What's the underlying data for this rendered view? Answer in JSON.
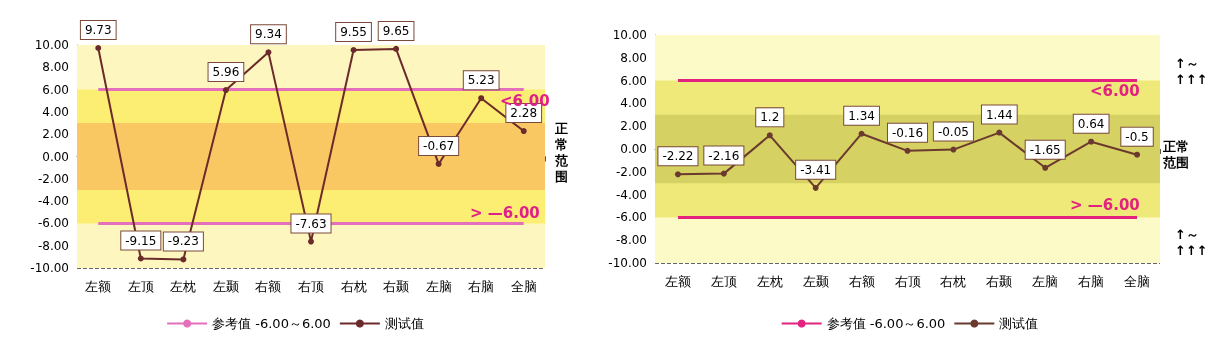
{
  "chart_data": [
    {
      "type": "line",
      "categories": [
        "左额",
        "左顶",
        "左枕",
        "左颞",
        "右额",
        "右顶",
        "右枕",
        "右颞",
        "左脑",
        "右脑",
        "全脑"
      ],
      "series": [
        {
          "name": "参考值 -6.00～6.00",
          "color": "#e36fbd",
          "marker": "none",
          "values": [
            6,
            6,
            6,
            6,
            6,
            6,
            6,
            6,
            6,
            6,
            6
          ]
        },
        {
          "color": "#e36fbd",
          "marker": "none",
          "values": [
            -6,
            -6,
            -6,
            -6,
            -6,
            -6,
            -6,
            -6,
            -6,
            -6,
            -6
          ]
        },
        {
          "name": "测试值",
          "color": "#6b2b2b",
          "marker": "circle",
          "values": [
            9.73,
            -9.15,
            -9.23,
            5.96,
            9.34,
            -7.63,
            9.55,
            9.65,
            -0.67,
            5.23,
            2.28
          ],
          "value_labels": [
            "9.73",
            "-9.15",
            "-9.23",
            "5.96",
            "9.34",
            "-7.63",
            "9.55",
            "9.65",
            "-0.67",
            "5.23",
            "2.28"
          ]
        }
      ],
      "ylim": [
        -10,
        10
      ],
      "yticks": [
        {
          "value": -10,
          "label": "-10.00"
        },
        {
          "value": -8,
          "label": "-8.00"
        },
        {
          "value": -6,
          "label": "-6.00"
        },
        {
          "value": -4,
          "label": "-4.00"
        },
        {
          "value": -2,
          "label": "-2.00"
        },
        {
          "value": 0,
          "label": "0.00"
        },
        {
          "value": 2,
          "label": "2.00"
        },
        {
          "value": 4,
          "label": "4.00"
        },
        {
          "value": 6,
          "label": "6.00"
        },
        {
          "value": 8,
          "label": "8.00"
        },
        {
          "value": 10,
          "label": "10.00"
        }
      ],
      "bands": [
        {
          "axis": "y",
          "from": -10,
          "to": 10,
          "color": "#fdf6bf"
        },
        {
          "axis": "y",
          "from": -6,
          "to": 6,
          "color": "#fcee72"
        },
        {
          "axis": "y",
          "from": -3,
          "to": 3,
          "color": "#f9c862"
        }
      ],
      "annotations": [
        "<6.00",
        "> —6.00",
        "正常范围"
      ],
      "grid": "y",
      "legend": "bottom"
    },
    {
      "type": "line",
      "categories": [
        "左额",
        "左顶",
        "左枕",
        "左颞",
        "右额",
        "右顶",
        "右枕",
        "右颞",
        "左脑",
        "右脑",
        "全脑"
      ],
      "series": [
        {
          "name": "参考值 -6.00～6.00",
          "color": "#e2227e",
          "marker": "none",
          "values": [
            6,
            6,
            6,
            6,
            6,
            6,
            6,
            6,
            6,
            6,
            6
          ]
        },
        {
          "color": "#e2227e",
          "marker": "none",
          "values": [
            -6,
            -6,
            -6,
            -6,
            -6,
            -6,
            -6,
            -6,
            -6,
            -6,
            -6
          ]
        },
        {
          "name": "测试值",
          "color": "#6b3a2e",
          "marker": "circle",
          "values": [
            -2.22,
            -2.16,
            1.2,
            -3.41,
            1.34,
            -0.16,
            -0.05,
            1.44,
            -1.65,
            0.64,
            -0.5
          ],
          "value_labels": [
            "-2.22",
            "-2.16",
            "1.2",
            "-3.41",
            "1.34",
            "-0.16",
            "-0.05",
            "1.44",
            "-1.65",
            "0.64",
            "-0.5"
          ]
        }
      ],
      "ylim": [
        -10,
        10
      ],
      "yticks": [
        {
          "value": -10,
          "label": "-10.00"
        },
        {
          "value": -8,
          "label": "-8.00"
        },
        {
          "value": -6,
          "label": "-6.00"
        },
        {
          "value": -4,
          "label": "-4.00"
        },
        {
          "value": -2,
          "label": "-2.00"
        },
        {
          "value": 0,
          "label": "0.00"
        },
        {
          "value": 2,
          "label": "2.00"
        },
        {
          "value": 4,
          "label": "4.00"
        },
        {
          "value": 6,
          "label": "6.00"
        },
        {
          "value": 8,
          "label": "8.00"
        },
        {
          "value": 10,
          "label": "10.00"
        }
      ],
      "bands": [
        {
          "axis": "y",
          "from": -10,
          "to": 10,
          "color": "#fcfac6"
        },
        {
          "axis": "y",
          "from": -6,
          "to": 6,
          "color": "#efe97a"
        },
        {
          "axis": "y",
          "from": -3,
          "to": 3,
          "color": "#d5d163"
        }
      ],
      "annotations": [
        "<6.00",
        "> —6.00",
        "↑～\n↑↑↑",
        "正常范围",
        "↑～\n↑↑↑"
      ],
      "grid": "y",
      "legend": "bottom"
    }
  ]
}
